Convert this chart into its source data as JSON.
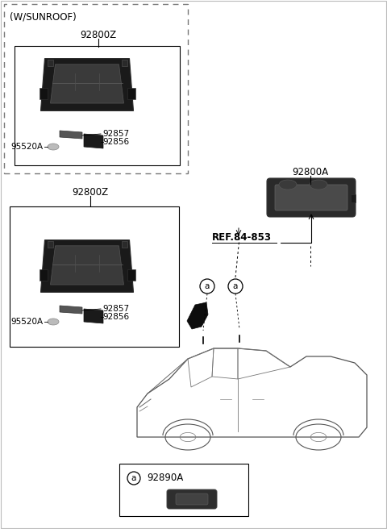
{
  "bg_color": "#ffffff",
  "border_color": "#000000",
  "text_color": "#000000",
  "parts": {
    "sunroof_label": "(W/SUNROOF)",
    "part_92800Z": "92800Z",
    "part_92857": "92857",
    "part_92856": "92856",
    "part_95520A": "95520A",
    "part_92800A": "92800A",
    "part_ref": "REF.84-853",
    "part_92890A": "92890A",
    "callout_a": "a"
  },
  "figsize": [
    4.8,
    6.56
  ],
  "dpi": 100
}
